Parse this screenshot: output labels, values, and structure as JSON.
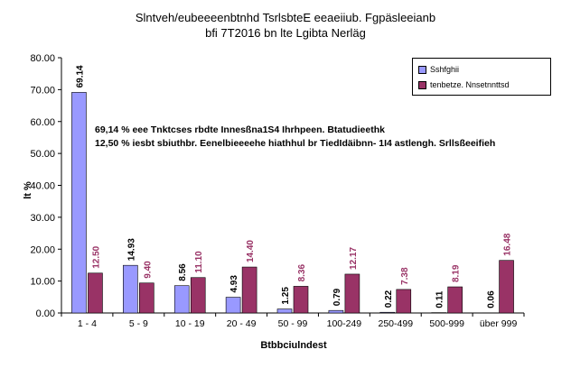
{
  "chart_data": {
    "type": "bar",
    "title_line1": "Slntveh/eubeeeenbtnhd TsrlsbteE eeaeiiub. Fgpäsleeianb",
    "title_line2": "bfi 7T2016 bn lte Lgibta Nerläg",
    "xlabel": "Btbbciulndest",
    "ylabel": "lt %",
    "ylim": [
      0,
      80
    ],
    "yticks": [
      "0.00",
      "10.00",
      "20.00",
      "30.00",
      "40.00",
      "50.00",
      "60.00",
      "70.00",
      "80.00"
    ],
    "categories": [
      "1 - 4",
      "5 - 9",
      "10 - 19",
      "20 - 49",
      "50 - 99",
      "100-249",
      "250-499",
      "500-999",
      "über 999"
    ],
    "series": [
      {
        "name": "Sshfghii",
        "color": "#9999ff",
        "values": [
          69.14,
          14.93,
          8.56,
          4.93,
          1.25,
          0.79,
          0.22,
          0.11,
          0.06
        ],
        "labels": [
          "69.14",
          "14.93",
          "8.56",
          "4.93",
          "1.25",
          "0.79",
          "0.22",
          "0.11",
          "0.06"
        ]
      },
      {
        "name": "tenbetze. Nnsetnnttsd",
        "color": "#993366",
        "values": [
          12.5,
          9.4,
          11.1,
          14.4,
          8.36,
          12.17,
          7.38,
          8.19,
          16.48
        ],
        "labels": [
          "12.50",
          "9.40",
          "11.10",
          "14.40",
          "8.36",
          "12.17",
          "7.38",
          "8.19",
          "16.48"
        ]
      }
    ],
    "annotations": [
      "69,14 % eee Tnktcses rbdte Innesßna1S4 Ihrhpeen. Btatudieethk",
      "12,50 % iesbt sbiuthbr. Eenelbieeeehe hiathhul br TiedIdäibnn- 1I4 astlengh. Srllsßeeifieh"
    ],
    "legend_position": "top-right",
    "grid": false
  }
}
